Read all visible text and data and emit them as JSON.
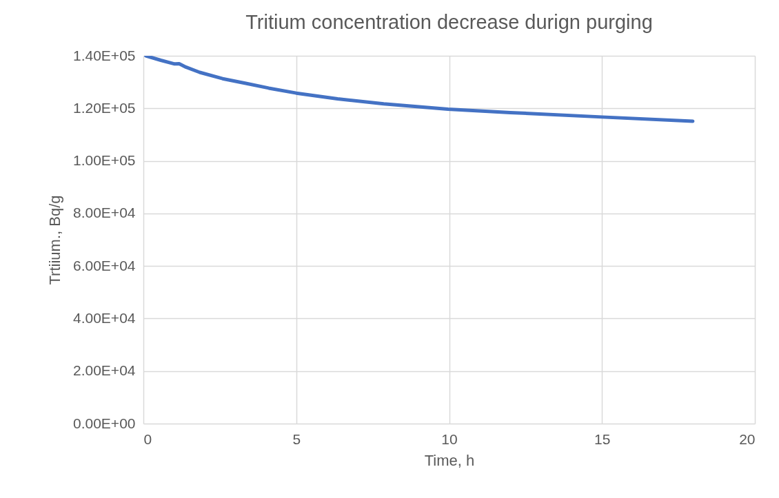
{
  "chart_data": {
    "type": "line",
    "title": "Tritium concentration decrease durign purging",
    "xlabel": "Time, h",
    "ylabel": "Trtiium., Bq/g",
    "x": [
      0.08,
      0.57,
      1.02,
      1.17,
      1.39,
      1.84,
      2.59,
      3.35,
      4.1,
      5.0,
      6.35,
      7.86,
      9.96,
      12.0,
      15.0,
      17.97
    ],
    "series": [
      {
        "color": "#4472c4",
        "values": [
          140000,
          138300,
          136900,
          137000,
          135700,
          133700,
          131300,
          129500,
          127700,
          125800,
          123600,
          121700,
          119700,
          118400,
          116700,
          115100
        ]
      }
    ],
    "xlim": [
      0,
      20
    ],
    "xticks": [
      0,
      5,
      10,
      15,
      20
    ],
    "ylim": [
      0,
      140000
    ],
    "yticks": [
      {
        "value": 0,
        "label": "0.00E+00"
      },
      {
        "value": 20000,
        "label": "2.00E+04"
      },
      {
        "value": 40000,
        "label": "4.00E+04"
      },
      {
        "value": 60000,
        "label": "6.00E+04"
      },
      {
        "value": 80000,
        "label": "8.00E+04"
      },
      {
        "value": 100000,
        "label": "1.00E+05"
      },
      {
        "value": 120000,
        "label": "1.20E+05"
      },
      {
        "value": 140000,
        "label": "1.40E+05"
      }
    ],
    "grid": true,
    "marker": "none",
    "line_style": "solid"
  }
}
